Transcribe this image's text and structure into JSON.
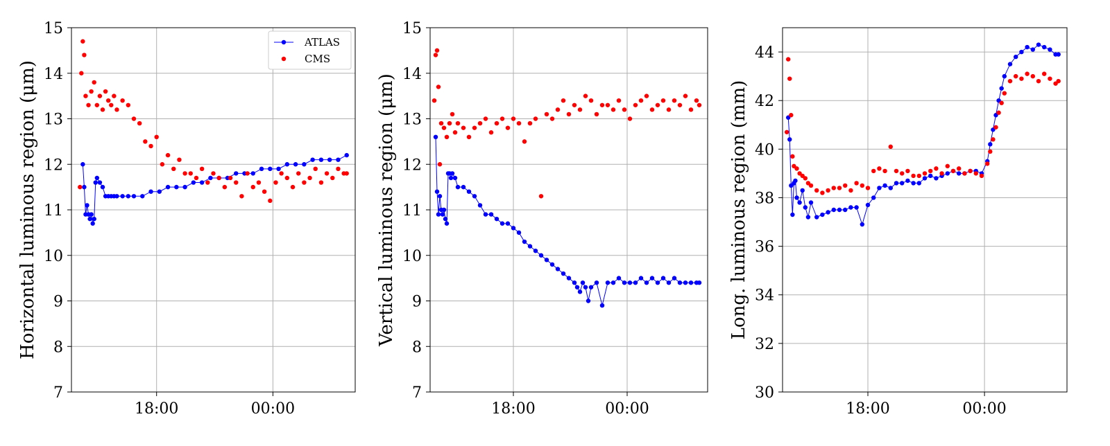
{
  "colors": {
    "atlas": "#0000ff",
    "cms": "#ff0000",
    "grid": "#b0b0b0",
    "axis": "#000000"
  },
  "legend": {
    "position": "top-right",
    "entries": [
      {
        "label": "ATLAS",
        "color": "#0000ff",
        "marker": "dot-line"
      },
      {
        "label": "CMS",
        "color": "#ff0000",
        "marker": "dot"
      }
    ]
  },
  "chart_data": [
    {
      "type": "scatter",
      "xlabel": "",
      "ylabel": "Horizontal luminous region (μm)",
      "ylim": [
        7,
        15
      ],
      "yticks": [
        7,
        8,
        9,
        10,
        11,
        12,
        13,
        14,
        15
      ],
      "xlim": [
        0,
        1
      ],
      "xticks": [
        {
          "x": 0.3,
          "label": "18:00"
        },
        {
          "x": 0.71,
          "label": "00:00"
        }
      ],
      "grid": true,
      "legend": true,
      "series": [
        {
          "name": "ATLAS",
          "color": "#0000ff",
          "line": true,
          "x": [
            0.04,
            0.045,
            0.05,
            0.055,
            0.06,
            0.065,
            0.07,
            0.075,
            0.08,
            0.085,
            0.09,
            0.1,
            0.11,
            0.12,
            0.13,
            0.14,
            0.15,
            0.16,
            0.18,
            0.2,
            0.22,
            0.25,
            0.28,
            0.31,
            0.34,
            0.37,
            0.4,
            0.43,
            0.46,
            0.49,
            0.52,
            0.55,
            0.58,
            0.61,
            0.64,
            0.67,
            0.7,
            0.73,
            0.76,
            0.79,
            0.82,
            0.85,
            0.88,
            0.91,
            0.94,
            0.97
          ],
          "y": [
            12.0,
            11.5,
            10.9,
            11.1,
            10.9,
            10.8,
            10.9,
            10.7,
            10.8,
            11.6,
            11.7,
            11.6,
            11.5,
            11.3,
            11.3,
            11.3,
            11.3,
            11.3,
            11.3,
            11.3,
            11.3,
            11.3,
            11.4,
            11.4,
            11.5,
            11.5,
            11.5,
            11.6,
            11.6,
            11.7,
            11.7,
            11.7,
            11.8,
            11.8,
            11.8,
            11.9,
            11.9,
            11.9,
            12.0,
            12.0,
            12.0,
            12.1,
            12.1,
            12.1,
            12.1,
            12.2
          ]
        },
        {
          "name": "CMS",
          "color": "#ff0000",
          "line": false,
          "x": [
            0.03,
            0.035,
            0.04,
            0.045,
            0.05,
            0.06,
            0.07,
            0.08,
            0.09,
            0.1,
            0.11,
            0.12,
            0.13,
            0.14,
            0.15,
            0.16,
            0.18,
            0.2,
            0.22,
            0.24,
            0.26,
            0.28,
            0.3,
            0.32,
            0.34,
            0.36,
            0.38,
            0.4,
            0.42,
            0.44,
            0.46,
            0.48,
            0.5,
            0.52,
            0.54,
            0.56,
            0.58,
            0.6,
            0.62,
            0.64,
            0.66,
            0.68,
            0.7,
            0.72,
            0.74,
            0.76,
            0.78,
            0.8,
            0.82,
            0.84,
            0.86,
            0.88,
            0.9,
            0.92,
            0.94,
            0.96,
            0.97
          ],
          "y": [
            11.5,
            14.0,
            14.7,
            14.4,
            13.5,
            13.3,
            13.6,
            13.8,
            13.3,
            13.5,
            13.2,
            13.6,
            13.4,
            13.3,
            13.5,
            13.2,
            13.4,
            13.3,
            13.0,
            12.9,
            12.5,
            12.4,
            12.6,
            12.0,
            12.2,
            11.9,
            12.1,
            11.8,
            11.8,
            11.7,
            11.9,
            11.6,
            11.8,
            11.7,
            11.5,
            11.7,
            11.6,
            11.3,
            11.8,
            11.5,
            11.6,
            11.4,
            11.2,
            11.6,
            11.8,
            11.7,
            11.5,
            11.8,
            11.6,
            11.7,
            11.9,
            11.6,
            11.8,
            11.7,
            11.9,
            11.8,
            11.8
          ]
        }
      ]
    },
    {
      "type": "scatter",
      "xlabel": "",
      "ylabel": "Vertical luminous region (μm)",
      "ylim": [
        7,
        15
      ],
      "yticks": [
        7,
        8,
        9,
        10,
        11,
        12,
        13,
        14,
        15
      ],
      "xlim": [
        0,
        1
      ],
      "xticks": [
        {
          "x": 0.3,
          "label": "18:00"
        },
        {
          "x": 0.71,
          "label": "00:00"
        }
      ],
      "grid": true,
      "legend": false,
      "series": [
        {
          "name": "ATLAS",
          "color": "#0000ff",
          "line": true,
          "x": [
            0.02,
            0.025,
            0.03,
            0.035,
            0.04,
            0.045,
            0.05,
            0.055,
            0.06,
            0.065,
            0.07,
            0.075,
            0.08,
            0.09,
            0.1,
            0.12,
            0.14,
            0.16,
            0.18,
            0.2,
            0.22,
            0.24,
            0.26,
            0.28,
            0.3,
            0.32,
            0.34,
            0.36,
            0.38,
            0.4,
            0.42,
            0.44,
            0.46,
            0.48,
            0.5,
            0.52,
            0.53,
            0.54,
            0.55,
            0.56,
            0.57,
            0.58,
            0.6,
            0.62,
            0.64,
            0.66,
            0.68,
            0.7,
            0.72,
            0.74,
            0.76,
            0.78,
            0.8,
            0.82,
            0.84,
            0.86,
            0.88,
            0.9,
            0.92,
            0.94,
            0.96,
            0.97
          ],
          "y": [
            12.6,
            11.4,
            10.9,
            11.3,
            11.0,
            10.9,
            11.0,
            10.8,
            10.7,
            11.8,
            11.8,
            11.7,
            11.8,
            11.7,
            11.5,
            11.5,
            11.4,
            11.3,
            11.1,
            10.9,
            10.9,
            10.8,
            10.7,
            10.7,
            10.6,
            10.5,
            10.3,
            10.2,
            10.1,
            10.0,
            9.9,
            9.8,
            9.7,
            9.6,
            9.5,
            9.4,
            9.3,
            9.2,
            9.4,
            9.3,
            9.0,
            9.3,
            9.4,
            8.9,
            9.4,
            9.4,
            9.5,
            9.4,
            9.4,
            9.4,
            9.5,
            9.4,
            9.5,
            9.4,
            9.5,
            9.4,
            9.5,
            9.4,
            9.4,
            9.4,
            9.4,
            9.4
          ]
        },
        {
          "name": "CMS",
          "color": "#ff0000",
          "line": false,
          "x": [
            0.015,
            0.02,
            0.025,
            0.03,
            0.035,
            0.04,
            0.05,
            0.06,
            0.07,
            0.08,
            0.09,
            0.1,
            0.12,
            0.14,
            0.16,
            0.18,
            0.2,
            0.22,
            0.24,
            0.26,
            0.28,
            0.3,
            0.32,
            0.34,
            0.36,
            0.38,
            0.4,
            0.42,
            0.44,
            0.46,
            0.48,
            0.5,
            0.52,
            0.54,
            0.56,
            0.58,
            0.6,
            0.62,
            0.64,
            0.66,
            0.68,
            0.7,
            0.72,
            0.74,
            0.76,
            0.78,
            0.8,
            0.82,
            0.84,
            0.86,
            0.88,
            0.9,
            0.92,
            0.94,
            0.96,
            0.97
          ],
          "y": [
            13.4,
            14.4,
            14.5,
            13.7,
            12.0,
            12.9,
            12.8,
            12.6,
            12.9,
            13.1,
            12.7,
            12.9,
            12.8,
            12.6,
            12.8,
            12.9,
            13.0,
            12.7,
            12.9,
            13.0,
            12.8,
            13.0,
            12.9,
            12.5,
            12.9,
            13.0,
            11.3,
            13.1,
            13.0,
            13.2,
            13.4,
            13.1,
            13.3,
            13.2,
            13.5,
            13.4,
            13.1,
            13.3,
            13.3,
            13.2,
            13.4,
            13.2,
            13.0,
            13.3,
            13.4,
            13.5,
            13.2,
            13.3,
            13.4,
            13.2,
            13.4,
            13.3,
            13.5,
            13.2,
            13.4,
            13.3
          ]
        }
      ]
    },
    {
      "type": "scatter",
      "xlabel": "",
      "ylabel": "Long. luminous region (mm)",
      "ylim": [
        30,
        45
      ],
      "yticks": [
        30,
        32,
        34,
        36,
        38,
        40,
        42,
        44
      ],
      "xlim": [
        0,
        1
      ],
      "xticks": [
        {
          "x": 0.3,
          "label": "18:00"
        },
        {
          "x": 0.71,
          "label": "00:00"
        }
      ],
      "grid": true,
      "legend": false,
      "series": [
        {
          "name": "ATLAS",
          "color": "#0000ff",
          "line": true,
          "x": [
            0.02,
            0.025,
            0.03,
            0.035,
            0.04,
            0.045,
            0.05,
            0.06,
            0.07,
            0.08,
            0.09,
            0.1,
            0.12,
            0.14,
            0.16,
            0.18,
            0.2,
            0.22,
            0.24,
            0.26,
            0.28,
            0.3,
            0.32,
            0.34,
            0.36,
            0.38,
            0.4,
            0.42,
            0.44,
            0.46,
            0.48,
            0.5,
            0.52,
            0.54,
            0.56,
            0.58,
            0.6,
            0.62,
            0.64,
            0.66,
            0.68,
            0.7,
            0.72,
            0.73,
            0.74,
            0.75,
            0.76,
            0.77,
            0.78,
            0.8,
            0.82,
            0.84,
            0.86,
            0.88,
            0.9,
            0.92,
            0.94,
            0.96,
            0.97
          ],
          "y": [
            41.3,
            40.4,
            38.5,
            37.3,
            38.6,
            38.7,
            38.0,
            37.8,
            38.3,
            37.6,
            37.2,
            37.8,
            37.2,
            37.3,
            37.4,
            37.5,
            37.5,
            37.5,
            37.6,
            37.6,
            36.9,
            37.7,
            38.0,
            38.4,
            38.5,
            38.4,
            38.6,
            38.6,
            38.7,
            38.6,
            38.6,
            38.8,
            38.9,
            38.8,
            38.9,
            39.0,
            39.1,
            39.0,
            39.0,
            39.1,
            39.1,
            39.0,
            39.5,
            40.2,
            40.8,
            41.4,
            42.0,
            42.5,
            43.0,
            43.5,
            43.8,
            44.0,
            44.2,
            44.1,
            44.3,
            44.2,
            44.1,
            43.9,
            43.9
          ]
        },
        {
          "name": "CMS",
          "color": "#ff0000",
          "line": false,
          "x": [
            0.015,
            0.02,
            0.025,
            0.03,
            0.035,
            0.04,
            0.05,
            0.06,
            0.07,
            0.08,
            0.09,
            0.1,
            0.12,
            0.14,
            0.16,
            0.18,
            0.2,
            0.22,
            0.24,
            0.26,
            0.28,
            0.3,
            0.32,
            0.34,
            0.36,
            0.38,
            0.4,
            0.42,
            0.44,
            0.46,
            0.48,
            0.5,
            0.52,
            0.54,
            0.56,
            0.58,
            0.6,
            0.62,
            0.64,
            0.66,
            0.68,
            0.7,
            0.72,
            0.73,
            0.74,
            0.75,
            0.76,
            0.77,
            0.78,
            0.8,
            0.82,
            0.84,
            0.86,
            0.88,
            0.9,
            0.92,
            0.94,
            0.96,
            0.97
          ],
          "y": [
            40.7,
            43.7,
            42.9,
            41.4,
            39.7,
            39.3,
            39.2,
            39.0,
            38.9,
            38.8,
            38.6,
            38.5,
            38.3,
            38.2,
            38.3,
            38.4,
            38.4,
            38.5,
            38.3,
            38.6,
            38.5,
            38.4,
            39.1,
            39.2,
            39.1,
            40.1,
            39.1,
            39.0,
            39.1,
            38.9,
            38.9,
            39.0,
            39.1,
            39.2,
            39.0,
            39.3,
            39.1,
            39.2,
            39.0,
            39.1,
            39.0,
            38.9,
            39.4,
            39.9,
            40.4,
            40.9,
            41.5,
            41.9,
            42.3,
            42.8,
            43.0,
            42.9,
            43.1,
            43.0,
            42.8,
            43.1,
            42.9,
            42.7,
            42.8
          ]
        }
      ]
    }
  ]
}
